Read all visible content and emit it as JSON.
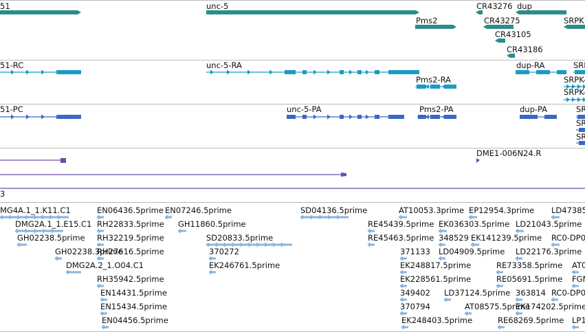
{
  "colors": {
    "gene": "#2b8c8c",
    "transcript_rc": "#1b9bc4",
    "transcript_pc": "#3a67c8",
    "alignment": "#6a4fa6",
    "est": "#8ab4dc",
    "separator": "#b9b9b9"
  },
  "tracks": {
    "genes": {
      "labels": [
        "51",
        "unc-5",
        "Pms2",
        "CR43276",
        "dup",
        "CR43275",
        "CR43105",
        "CR43186",
        "SRPK"
      ]
    },
    "transcripts_rc": {
      "labels": [
        "51-RC",
        "unc-5-RA",
        "Pms2-RA",
        "dup-RA",
        "SRPK",
        "SRPK-",
        "SRPK-"
      ]
    },
    "transcripts_pc": {
      "labels": [
        "51-PC",
        "unc-5-PA",
        "Pms2-PA",
        "dup-PA",
        "SR",
        "SR",
        "SR"
      ]
    },
    "alignments": {
      "labels": [
        "DME1-006N24.R"
      ]
    },
    "track_label": "3",
    "ests": {
      "labels": [
        "MG4A.1_1.K11.C1",
        "EN06436.5prime",
        "EN07246.5prime",
        "SD04136.5prime",
        "AT10053.3prime",
        "EP12954.3prime",
        "LD47385",
        "DMG2A.1_1.E15.C1",
        "RH22833.5prime",
        "GH11860.5prime",
        "RE45439.5prime",
        "EK036303.5prime",
        "LD21043.5prime",
        "GH02238.5prime",
        "RH32219.5prime",
        "SD20833.5prime",
        "RE45463.5prime",
        "348529",
        "EK141239.5prime",
        "RC0-DP0",
        "GH02238.3prime",
        "RH27616.5prime",
        "370272",
        "371133",
        "LD04909.5prime",
        "LD22176.3prime",
        "DMG2A.2_1.O04.C1",
        "EK246761.5prime",
        "EK248817.5prime",
        "RE73358.5prime",
        "AT0",
        "RH35942.5prime",
        "EK228561.5prime",
        "RE05691.5prime",
        "FGM",
        "EN14431.5prime",
        "349402",
        "LD37124.5prime",
        "363814",
        "RC0-DP0",
        "EN15434.5prime",
        "370794",
        "AT08575.5prime",
        "EK174202.5prime",
        "EN04456.5prime",
        "EK248403.5prime",
        "RE68269.5prime",
        "LP1"
      ]
    }
  }
}
